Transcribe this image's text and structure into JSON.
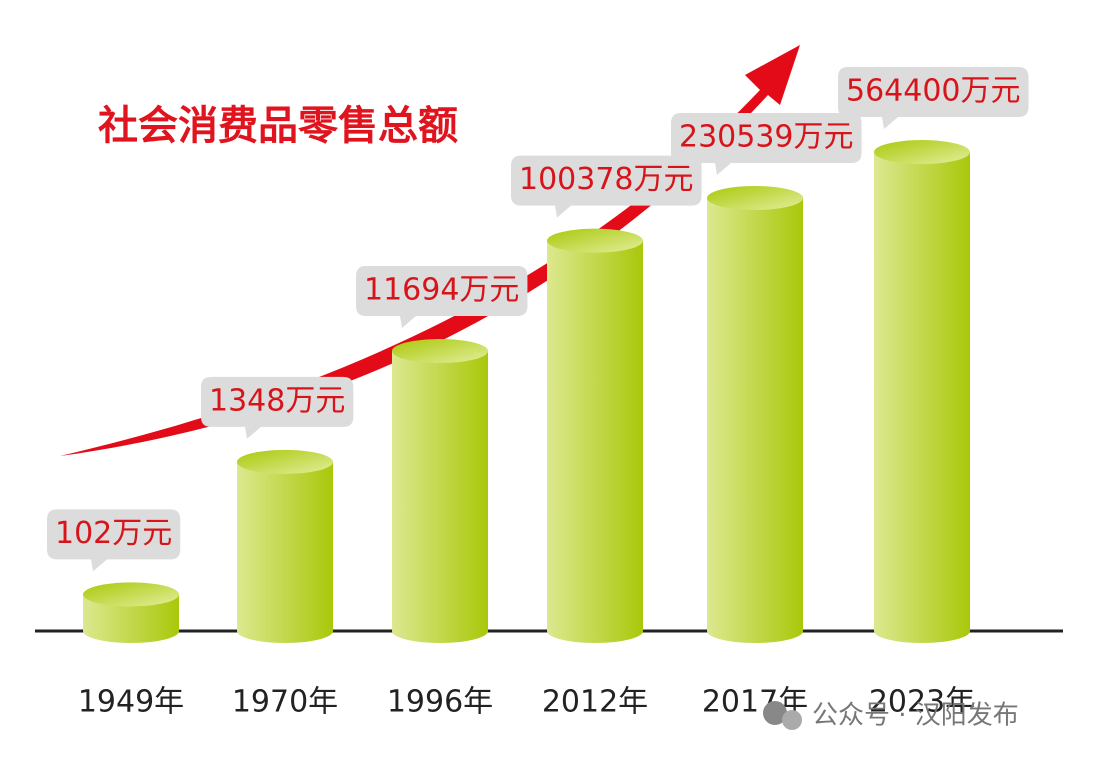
{
  "chart_data": {
    "type": "bar",
    "title": "社会消费品零售总额",
    "categories": [
      "1949年",
      "1970年",
      "1996年",
      "2012年",
      "2017年",
      "2023年"
    ],
    "values": [
      102,
      1348,
      11694,
      100378,
      230539,
      564400
    ],
    "value_labels": [
      "102万元",
      "1348万元",
      "11694万元",
      "100378万元",
      "230539万元",
      "564400万元"
    ],
    "log_scale": true,
    "ylim": [
      50,
      700000
    ],
    "color": "#a9c80a",
    "watermark": "公众号 · 汉阳发布"
  }
}
